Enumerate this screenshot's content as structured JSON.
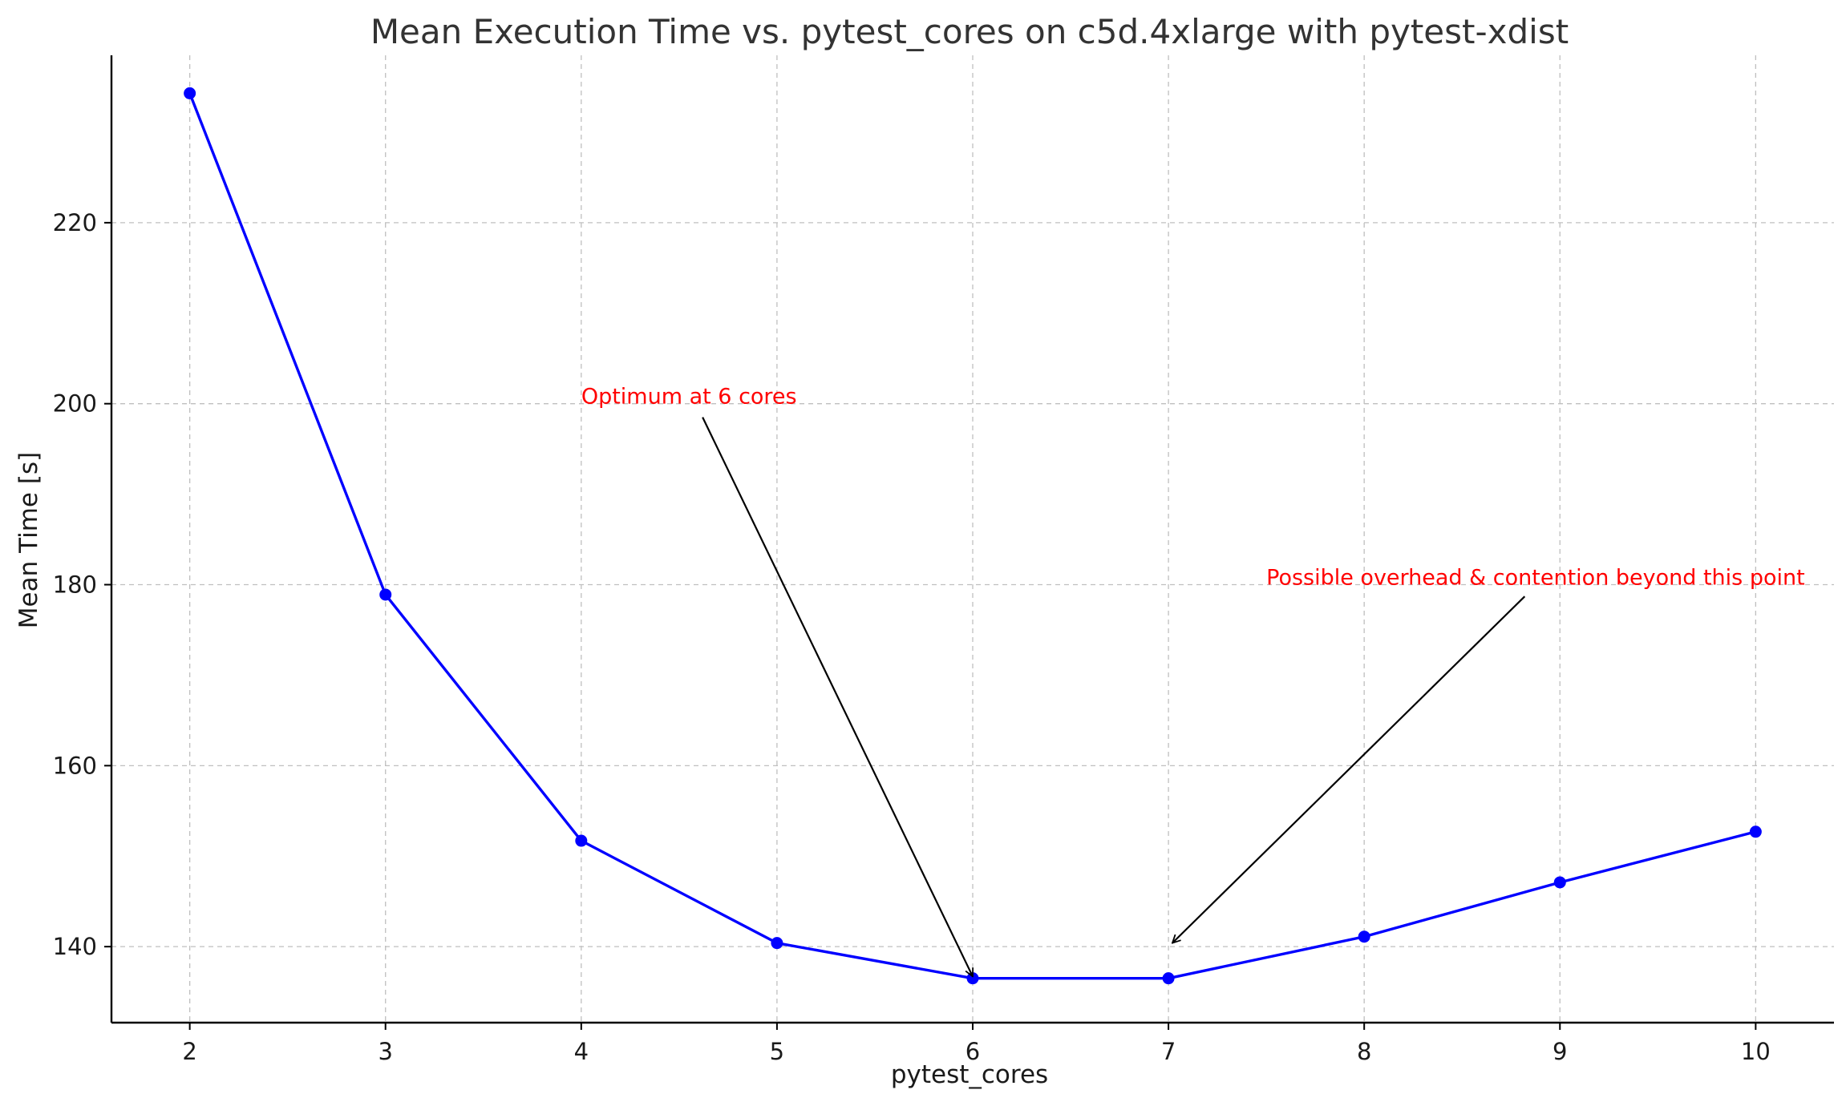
{
  "chart_data": {
    "type": "line",
    "title": "Mean Execution Time vs. pytest_cores on c5d.4xlarge with pytest-xdist",
    "xlabel": "pytest_cores",
    "ylabel": "Mean Time [s]",
    "x": [
      2,
      3,
      4,
      5,
      6,
      7,
      8,
      9,
      10
    ],
    "series": [
      {
        "name": "Mean Time",
        "color": "#0000ff",
        "marker": "circle",
        "values": [
          234.3,
          178.9,
          151.7,
          140.4,
          136.5,
          136.5,
          141.1,
          147.1,
          152.7
        ]
      }
    ],
    "xlim": [
      1.6,
      10.4
    ],
    "ylim": [
      131.6,
      238.5
    ],
    "xticks": [
      "2",
      "3",
      "4",
      "5",
      "6",
      "7",
      "8",
      "9",
      "10"
    ],
    "yticks": [
      "140",
      "160",
      "180",
      "200",
      "220"
    ],
    "ytick_values": [
      140,
      160,
      180,
      200,
      220
    ],
    "grid": true,
    "legend": "none",
    "annotations": [
      {
        "text": "Optimum at 6 cores",
        "color": "#ff0000",
        "text_x": 4.0,
        "text_y": 200,
        "arrow_from_x": 4.62,
        "arrow_from_y": 198.5,
        "arrow_to_x": 6.0,
        "arrow_to_y": 136.7
      },
      {
        "text": "Possible overhead & contention beyond this point",
        "color": "#ff0000",
        "text_x": 7.5,
        "text_y": 180,
        "arrow_from_x": 8.82,
        "arrow_from_y": 178.7,
        "arrow_to_x": 7.02,
        "arrow_to_y": 140.4
      }
    ]
  }
}
